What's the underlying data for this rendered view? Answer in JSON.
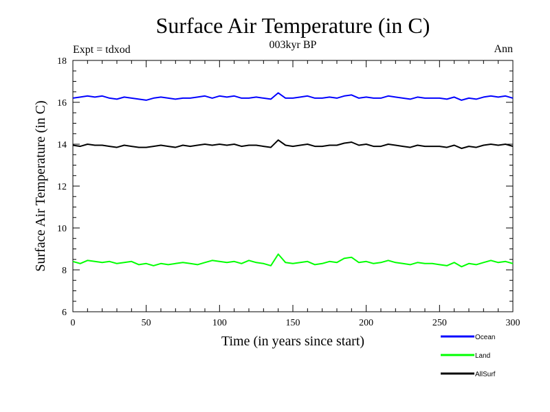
{
  "chart_data": {
    "type": "line",
    "title": "Surface Air Temperature (in C)",
    "subtitle": "003kyr BP",
    "annotation_left": "Expt = tdxod",
    "annotation_right": "Ann",
    "xlabel": "Time (in years since start)",
    "ylabel": "Surface Air Temperature (in C)",
    "xlim": [
      0,
      300
    ],
    "ylim": [
      6,
      18
    ],
    "x_ticks": [
      0,
      50,
      100,
      150,
      200,
      250,
      300
    ],
    "y_ticks": [
      6,
      8,
      10,
      12,
      14,
      16,
      18
    ],
    "grid": false,
    "legend_position": "bottom-right, below plot",
    "series": [
      {
        "name": "Ocean",
        "color": "#0000ff",
        "x_start": 0,
        "x_step": 5,
        "values": [
          16.2,
          16.25,
          16.3,
          16.25,
          16.3,
          16.2,
          16.15,
          16.25,
          16.2,
          16.15,
          16.1,
          16.2,
          16.25,
          16.2,
          16.15,
          16.2,
          16.2,
          16.25,
          16.3,
          16.2,
          16.3,
          16.25,
          16.3,
          16.2,
          16.2,
          16.25,
          16.2,
          16.15,
          16.45,
          16.2,
          16.2,
          16.25,
          16.3,
          16.2,
          16.2,
          16.25,
          16.2,
          16.3,
          16.35,
          16.2,
          16.25,
          16.2,
          16.2,
          16.3,
          16.25,
          16.2,
          16.15,
          16.25,
          16.2,
          16.2,
          16.2,
          16.15,
          16.25,
          16.1,
          16.2,
          16.15,
          16.25,
          16.3,
          16.25,
          16.3,
          16.2
        ]
      },
      {
        "name": "Land",
        "color": "#00ff00",
        "x_start": 0,
        "x_step": 5,
        "values": [
          8.4,
          8.3,
          8.45,
          8.4,
          8.35,
          8.4,
          8.3,
          8.35,
          8.4,
          8.25,
          8.3,
          8.2,
          8.3,
          8.25,
          8.3,
          8.35,
          8.3,
          8.25,
          8.35,
          8.45,
          8.4,
          8.35,
          8.4,
          8.3,
          8.45,
          8.35,
          8.3,
          8.2,
          8.75,
          8.35,
          8.3,
          8.35,
          8.4,
          8.25,
          8.3,
          8.4,
          8.35,
          8.55,
          8.6,
          8.35,
          8.4,
          8.3,
          8.35,
          8.45,
          8.35,
          8.3,
          8.25,
          8.35,
          8.3,
          8.3,
          8.25,
          8.2,
          8.35,
          8.15,
          8.3,
          8.25,
          8.35,
          8.45,
          8.35,
          8.4,
          8.3
        ]
      },
      {
        "name": "AllSurf",
        "color": "#000000",
        "x_start": 0,
        "x_step": 5,
        "values": [
          13.95,
          13.9,
          14.0,
          13.95,
          13.95,
          13.9,
          13.85,
          13.95,
          13.9,
          13.85,
          13.85,
          13.9,
          13.95,
          13.9,
          13.85,
          13.95,
          13.9,
          13.95,
          14.0,
          13.95,
          14.0,
          13.95,
          14.0,
          13.9,
          13.95,
          13.95,
          13.9,
          13.85,
          14.2,
          13.95,
          13.9,
          13.95,
          14.0,
          13.9,
          13.9,
          13.95,
          13.95,
          14.05,
          14.1,
          13.95,
          14.0,
          13.9,
          13.9,
          14.0,
          13.95,
          13.9,
          13.85,
          13.95,
          13.9,
          13.9,
          13.9,
          13.85,
          13.95,
          13.8,
          13.9,
          13.85,
          13.95,
          14.0,
          13.95,
          14.0,
          13.9
        ]
      }
    ]
  }
}
